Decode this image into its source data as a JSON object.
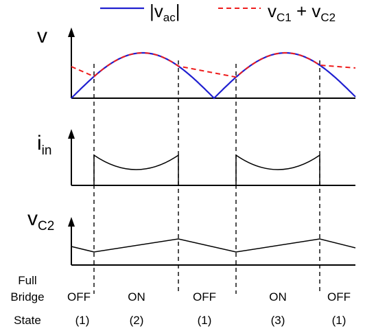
{
  "legend": {
    "vac_base": "|v",
    "vac_sub": "ac",
    "vac_close": "|",
    "sum_v1": "v",
    "sum_s1": "C1",
    "sum_plus": " + v",
    "sum_s2": "C2",
    "vac_color": "#1f1fd0",
    "sum_color": "#ee1c1c"
  },
  "panels": {
    "top": {
      "label": "v"
    },
    "middle": {
      "label": "i",
      "label_sub": "in"
    },
    "bottom": {
      "label": "v",
      "label_sub": "C2"
    }
  },
  "state_table": {
    "row_header_line1": "Full",
    "row_header_line2": "Bridge",
    "row_header_line3": "State",
    "states": [
      "OFF",
      "ON",
      "OFF",
      "ON",
      "OFF"
    ],
    "modes": [
      "(1)",
      "(2)",
      "(1)",
      "(3)",
      "(1)"
    ]
  }
}
